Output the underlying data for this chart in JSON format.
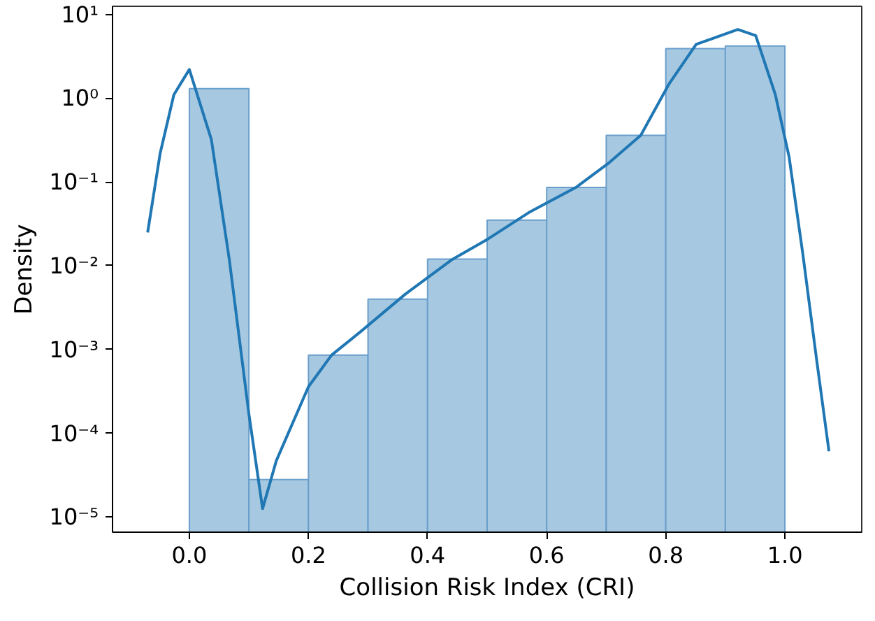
{
  "chart_data": {
    "type": "histogram",
    "xlabel": "Collision Risk Index (CRI)",
    "ylabel": "Density",
    "bins": [
      0,
      0.1,
      0.2,
      0.3,
      0.4,
      0.5,
      0.6,
      0.7,
      0.8,
      0.9,
      1.0
    ],
    "values": [
      1.3,
      2.8e-05,
      0.00086,
      0.004,
      0.012,
      0.035,
      0.086,
      0.36,
      3.9,
      4.2
    ],
    "color": "#a6c8e1",
    "series": [
      {
        "type": "line",
        "color": "#1f77b4",
        "x": [
          -0.07,
          -0.049,
          -0.026,
          0.0,
          0.037,
          0.067,
          0.1,
          0.123,
          0.146,
          0.2,
          0.239,
          0.286,
          0.363,
          0.44,
          0.502,
          0.572,
          0.649,
          0.705,
          0.758,
          0.805,
          0.851,
          0.921,
          0.951,
          0.984,
          1.007,
          1.03,
          1.053,
          1.074
        ],
        "values": [
          0.025,
          0.22,
          1.1,
          2.2,
          0.32,
          0.012,
          0.00017,
          1.26e-05,
          4.7e-05,
          0.00036,
          0.00086,
          0.0016,
          0.0046,
          0.0117,
          0.021,
          0.044,
          0.086,
          0.17,
          0.36,
          1.46,
          4.4,
          6.6,
          5.6,
          1.1,
          0.2,
          0.014,
          0.00078,
          6.1e-05
        ]
      }
    ],
    "log": "y",
    "xlim": [
      -0.129,
      1.129
    ],
    "ylim": [
      6.6e-06,
      12.5
    ],
    "xticks": [
      {
        "value": 0,
        "label": "0.0"
      },
      0.2,
      0.4,
      0.6,
      0.8,
      {
        "value": 1,
        "label": "1.0"
      }
    ],
    "yticks": [
      {
        "value": 1e-05,
        "label": "10⁻⁵"
      },
      {
        "value": 0.0001,
        "label": "10⁻⁴"
      },
      {
        "value": 0.001,
        "label": "10⁻³"
      },
      {
        "value": 0.01,
        "label": "10⁻²"
      },
      {
        "value": 0.1,
        "label": "10⁻¹"
      },
      {
        "value": 1,
        "label": "10⁰"
      },
      {
        "value": 10,
        "label": "10¹"
      }
    ],
    "grid": false
  }
}
